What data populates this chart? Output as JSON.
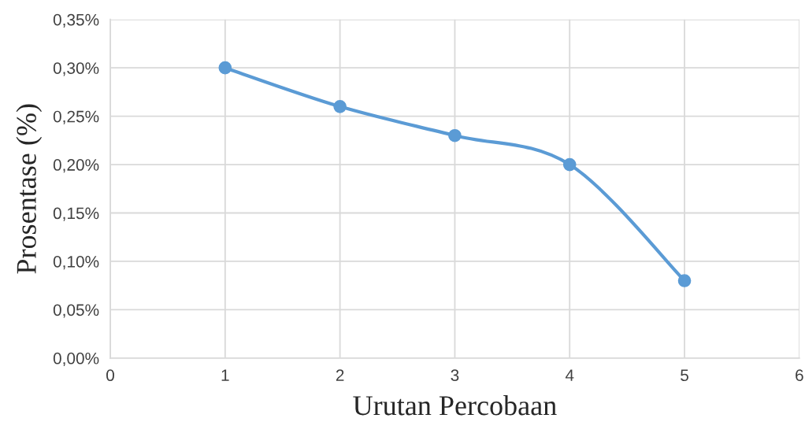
{
  "chart_data": {
    "type": "line",
    "xlabel": "Urutan Percobaan",
    "ylabel": "Prosentase (%)",
    "x": [
      1,
      2,
      3,
      4,
      5
    ],
    "series": [
      {
        "color": "#5b9bd5",
        "values": [
          0.3,
          0.26,
          0.23,
          0.2,
          0.08
        ]
      }
    ],
    "xlim": [
      0,
      6
    ],
    "xticks": [
      0,
      1,
      2,
      3,
      4,
      5,
      6
    ],
    "ylim": [
      0,
      0.35
    ],
    "yticks": [
      {
        "value": 0,
        "label": "0,00%"
      },
      {
        "value": 0.05,
        "label": "0,05%"
      },
      {
        "value": 0.1,
        "label": "0,10%"
      },
      {
        "value": 0.15,
        "label": "0,15%"
      },
      {
        "value": 0.2,
        "label": "0,20%"
      },
      {
        "value": 0.25,
        "label": "0,25%"
      },
      {
        "value": 0.3,
        "label": "0,30%"
      },
      {
        "value": 0.35,
        "label": "0,35%"
      }
    ],
    "grid": true,
    "marker": "circle",
    "line_style": "solid"
  }
}
